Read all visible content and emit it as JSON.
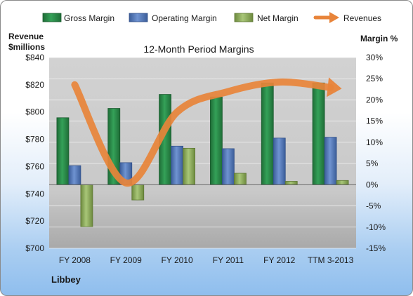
{
  "chart_data": {
    "type": "bar",
    "title": "12-Month Period Margins",
    "company": "Libbey",
    "left_axis_title_line1": "Revenue",
    "left_axis_title_line2": "$millions",
    "right_axis_title": "Margin %",
    "categories": [
      "FY 2008",
      "FY 2009",
      "FY 2010",
      "FY 2011",
      "FY 2012",
      "TTM 3-2013"
    ],
    "left_axis": {
      "range": [
        700,
        840
      ],
      "ticks": [
        700,
        720,
        740,
        760,
        780,
        800,
        820,
        840
      ],
      "tick_labels": [
        "$700",
        "$720",
        "$740",
        "$760",
        "$780",
        "$800",
        "$820",
        "$840"
      ]
    },
    "right_axis": {
      "range": [
        -15,
        30
      ],
      "ticks": [
        -15,
        -10,
        -5,
        0,
        5,
        10,
        15,
        20,
        25,
        30
      ],
      "tick_labels": [
        "-15%",
        "-10%",
        "-5%",
        "0%",
        "5%",
        "10%",
        "15%",
        "20%",
        "25%",
        "30%"
      ]
    },
    "series": [
      {
        "name": "Gross Margin",
        "kind": "bar",
        "axis": "right",
        "color": "#2e8b4a",
        "values": [
          15.8,
          18.0,
          21.3,
          20.7,
          24.0,
          24.0
        ]
      },
      {
        "name": "Operating Margin",
        "kind": "bar",
        "axis": "right",
        "color": "#4f74b5",
        "values": [
          4.5,
          5.2,
          9.1,
          8.5,
          11.0,
          11.2
        ]
      },
      {
        "name": "Net Margin",
        "kind": "bar",
        "axis": "right",
        "color": "#8fb05a",
        "values": [
          -9.9,
          -3.6,
          8.6,
          2.7,
          0.8,
          1.0
        ]
      },
      {
        "name": "Revenues",
        "kind": "line",
        "axis": "left",
        "color": "#e8843a",
        "values": [
          820,
          748,
          800,
          815,
          822,
          818
        ]
      }
    ],
    "grid": true,
    "legend_position": "top"
  }
}
